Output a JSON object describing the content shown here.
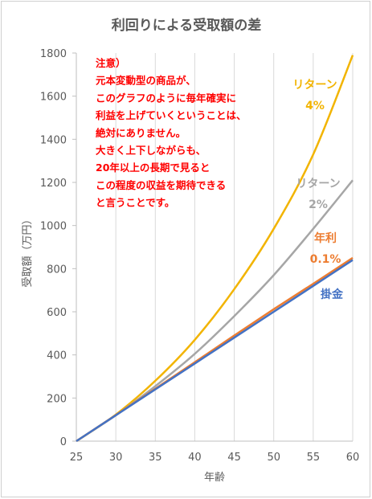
{
  "chart_data": {
    "type": "line",
    "title": "利回りによる受取額の差",
    "xlabel": "年齢",
    "ylabel": "受取額（万円）",
    "xlim": [
      25,
      60
    ],
    "ylim": [
      0,
      1800
    ],
    "x_ticks": [
      "25",
      "30",
      "35",
      "40",
      "45",
      "50",
      "55",
      "60"
    ],
    "y_ticks": [
      "0",
      "200",
      "400",
      "600",
      "800",
      "1000",
      "1200",
      "1400",
      "1600",
      "1800"
    ],
    "grid": "vertical",
    "x": [
      25,
      30,
      35,
      40,
      45,
      50,
      55,
      60
    ],
    "series": [
      {
        "name_lines": [
          "リターン",
          "4%"
        ],
        "color": "#f2b400",
        "values": [
          0,
          123,
          280,
          470,
          705,
          985,
          1330,
          1790
        ]
      },
      {
        "name_lines": [
          "リターン",
          "2%"
        ],
        "color": "#a6a6a6",
        "values": [
          0,
          120,
          255,
          405,
          580,
          770,
          985,
          1210
        ]
      },
      {
        "name_lines": [
          "年利",
          "0.1%"
        ],
        "color": "#ed7d31",
        "values": [
          0,
          121,
          243,
          366,
          490,
          612,
          730,
          850
        ]
      },
      {
        "name_lines": [
          "掛金"
        ],
        "color": "#4472c4",
        "values": [
          0,
          120,
          240,
          360,
          480,
          600,
          720,
          840
        ]
      }
    ],
    "annotation": {
      "color": "#ff0000",
      "lines": [
        "注意）",
        "元本変動型の商品が、",
        "このグラフのように毎年確実に",
        "利益を上げていくということは、",
        "絶対にありません。",
        "大きく上下しながらも、",
        "20年以上の長期で見ると",
        "この程度の収益を期待できる",
        "と言うことです。"
      ]
    }
  }
}
